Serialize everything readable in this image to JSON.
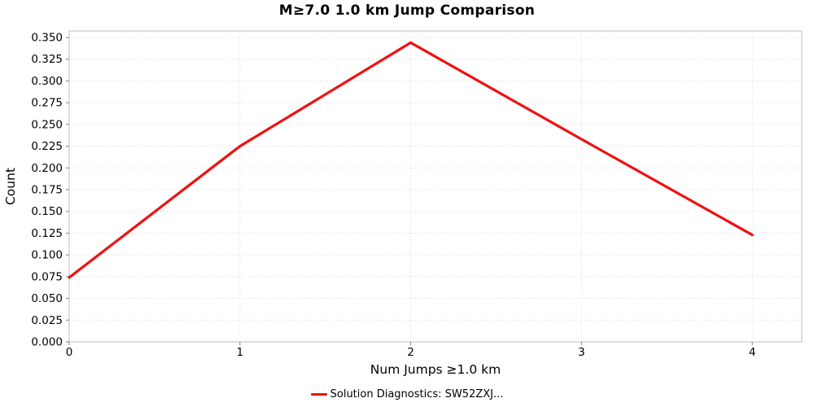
{
  "title": "M≥7.0 1.0 km Jump Comparison",
  "chart_data": {
    "type": "line",
    "title": "M≥7.0 1.0 km Jump Comparison",
    "xlabel": "Num Jumps ≥1.0 km",
    "ylabel": "Count",
    "x": [
      0,
      1,
      2,
      3,
      4
    ],
    "series": [
      {
        "name": "Solution Diagnostics: SW52ZXJ...",
        "color": "#ee1111",
        "values": [
          0.074,
          0.225,
          0.344,
          0.233,
          0.123
        ]
      }
    ],
    "xticks": [
      0,
      1,
      2,
      3,
      4
    ],
    "ytick_step": 0.025,
    "ytick_max": 0.35,
    "ytick_decimals": 3,
    "ylim": [
      0,
      0.3575
    ],
    "xlim": [
      0,
      4.29
    ],
    "grid": true,
    "legend_position": "bottom",
    "background": "#ffffff"
  }
}
